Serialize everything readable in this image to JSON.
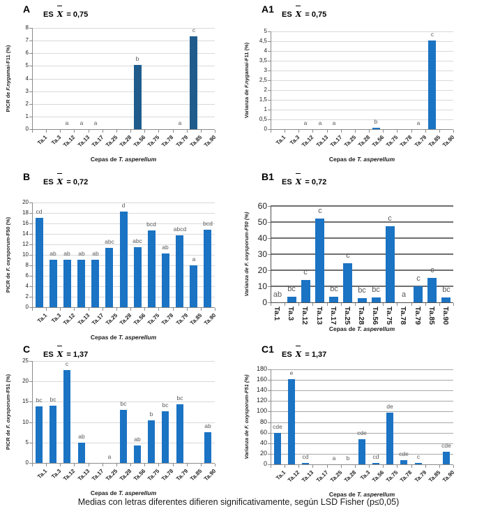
{
  "figure": {
    "caption": "Medias con letras diferentes difieren significativamente, según LSD Fisher (p≤0,05)",
    "background": "#FFFFFF"
  },
  "chart_data": [
    {
      "id": "A",
      "type": "bar",
      "panel_label": "A",
      "es": {
        "prefix": "ES",
        "symbol": "X",
        "value": "= 0,75"
      },
      "ylabel": {
        "prefix": "PICR de ",
        "italic": "F.nygamai",
        "suffix": "-F11 (%)"
      },
      "xlabel": {
        "prefix": "Cepas de ",
        "italic": "T. asperellum"
      },
      "categories": [
        "Ta.1",
        "Ta.3",
        "Ta.12",
        "Ta.13",
        "Ta.17",
        "Ta.25",
        "Ta.28",
        "Ta.56",
        "Ta.75",
        "Ta.78",
        "Ta.79",
        "Ta.85",
        "Ta.90"
      ],
      "values": [
        0,
        0,
        0,
        0,
        0,
        0,
        0,
        5.1,
        0,
        0,
        0,
        7.35,
        0
      ],
      "letters": [
        "",
        "",
        "a",
        "a",
        "a",
        "",
        "",
        "b",
        "",
        "",
        "a",
        "c",
        ""
      ],
      "ylim": [
        0,
        8
      ],
      "ytick_labels": [
        "0",
        "1",
        "2",
        "3",
        "4",
        "5",
        "6",
        "7",
        "8"
      ],
      "bar_color": "#1F5C8C",
      "grid_color": "#D9D9D9",
      "grid_weight": 1
    },
    {
      "id": "A1",
      "type": "bar",
      "panel_label": "A1",
      "es": {
        "prefix": "ES",
        "symbol": "X",
        "value": "= 0,75"
      },
      "ylabel": {
        "prefix": "Varianza de ",
        "italic": "F.nygamai",
        "suffix": "-F11 (%)"
      },
      "xlabel": {
        "prefix": "Cepas de ",
        "italic": "T. asperellum"
      },
      "categories": [
        "Ta.1",
        "Ta.3",
        "Ta.12",
        "Ta.13",
        "Ta.17",
        "Ta.25",
        "Ta.28",
        "Ta.56",
        "Ta.75",
        "Ta.78",
        "Ta.79",
        "Ta.85",
        "Ta.90"
      ],
      "values": [
        0,
        0,
        0,
        0,
        0,
        0,
        0,
        0.07,
        0,
        0,
        0,
        4.55,
        0
      ],
      "letters": [
        "",
        "",
        "a",
        "a",
        "a",
        "",
        "",
        "b",
        "",
        "",
        "a",
        "c",
        ""
      ],
      "ylim": [
        0,
        5
      ],
      "ytick_labels": [
        "0",
        "0,5",
        "1",
        "1,5",
        "2",
        "2,5",
        "3",
        "3,5",
        "4",
        "4,5",
        "5"
      ],
      "bar_color": "#1B73C4",
      "grid_color": "#D9D9D9",
      "grid_weight": 1
    },
    {
      "id": "B",
      "type": "bar",
      "panel_label": "B",
      "es": {
        "prefix": "ES",
        "symbol": "X",
        "value": "= 0,72"
      },
      "ylabel": {
        "prefix": "PICR de ",
        "italic": "F. oxysporum",
        "suffix": "-F50 (%)"
      },
      "xlabel": {
        "prefix": "Cepas de ",
        "italic": "T. asperellum"
      },
      "categories": [
        "Ta.1",
        "Ta.3",
        "Ta.12",
        "Ta.13",
        "Ta.17",
        "Ta.25",
        "Ta.28",
        "Ta.56",
        "Ta.75",
        "Ta.78",
        "Ta.79",
        "Ta.85",
        "Ta.90"
      ],
      "values": [
        17.1,
        9.1,
        9.0,
        9.1,
        9.1,
        11.3,
        18.2,
        11.4,
        14.7,
        10.3,
        13.7,
        8.0,
        14.8
      ],
      "letters": [
        "cd",
        "ab",
        "ab",
        "ab",
        "ab",
        "abc",
        "d",
        "abc",
        "bcd",
        "ab",
        "abcd",
        "a",
        "bcd"
      ],
      "ylim": [
        0,
        20
      ],
      "ytick_labels": [
        "0",
        "2",
        "4",
        "6",
        "8",
        "10",
        "12",
        "14",
        "16",
        "18",
        "20"
      ],
      "bar_color": "#1B73C4",
      "grid_color": "#D9D9D9",
      "grid_weight": 1
    },
    {
      "id": "B1",
      "type": "bar",
      "panel_label": "B1",
      "es": {
        "prefix": "ES",
        "symbol": "X",
        "value": "= 0,72"
      },
      "ylabel": {
        "prefix": "Varianza de ",
        "italic": "F. oxysporum",
        "suffix": "-F50 (%)"
      },
      "xlabel": {
        "prefix": "Cepas de ",
        "italic": "T. asperellum"
      },
      "categories": [
        "Ta.1",
        "Ta.3",
        "Ta.12",
        "Ta.13",
        "Ta.17",
        "Ta.25",
        "Ta.28",
        "Ta.56",
        "Ta.75",
        "Ta.78",
        "Ta.79",
        "Ta.85",
        "Ta.90"
      ],
      "values": [
        0,
        3.5,
        14,
        52,
        3.5,
        24.5,
        2.5,
        3,
        47.5,
        0,
        10,
        15,
        3
      ],
      "letters": [
        "ab",
        "bc",
        "c",
        "c",
        "bc",
        "c",
        "bc",
        "bc",
        "c",
        "a",
        "c",
        "c",
        "bc"
      ],
      "ylim": [
        0,
        60
      ],
      "ytick_labels": [
        "0",
        "10",
        "20",
        "30",
        "40",
        "50",
        "60"
      ],
      "bar_color": "#1B73C4",
      "grid_color": "#6E6E6E",
      "grid_weight": 2
    },
    {
      "id": "C",
      "type": "bar",
      "panel_label": "C",
      "es": {
        "prefix": "ES",
        "symbol": "X",
        "value": "= 1,37"
      },
      "ylabel": {
        "prefix": "PICR de ",
        "italic": "F. oxysporum",
        "suffix": "-F51 (%)"
      },
      "xlabel": {
        "prefix": "Cepas de ",
        "italic": "T. asperellum"
      },
      "categories": [
        "Ta.1",
        "Ta.3",
        "Ta.12",
        "Ta.13",
        "Ta.17",
        "Ta.25",
        "Ta.28",
        "Ta.56",
        "Ta.75",
        "Ta.78",
        "Ta.79",
        "Ta.85",
        "Ta.90"
      ],
      "values": [
        13.9,
        14.1,
        22.8,
        5.0,
        0,
        0,
        13.0,
        4.3,
        10.5,
        12.7,
        14.3,
        0,
        7.5
      ],
      "letters": [
        "bc",
        "bc",
        "c",
        "ab",
        "",
        "a",
        "bc",
        "ab",
        "b",
        "bc",
        "bc",
        "",
        "ab"
      ],
      "ylim": [
        0,
        25
      ],
      "ytick_labels": [
        "0",
        "5",
        "10",
        "15",
        "20",
        "25"
      ],
      "bar_color": "#1B73C4",
      "grid_color": "#D9D9D9",
      "grid_weight": 1
    },
    {
      "id": "C1",
      "type": "bar",
      "panel_label": "C1",
      "es": {
        "prefix": "ES",
        "symbol": "X",
        "value": "= 1,37"
      },
      "ylabel": {
        "prefix": "Varianza de ",
        "italic": "F. oxysporum",
        "suffix": "-F51 (%)"
      },
      "xlabel": {
        "prefix": "Cepas de ",
        "italic": "T. asperellum"
      },
      "categories": [
        "Ta.1",
        "Ta.12",
        "Ta.13",
        "Ta.17",
        "Ta.25",
        "Ta.28",
        "Ta.3",
        "Ta.56",
        "Ta.75",
        "Ta.78",
        "Ta.79",
        "Ta.85",
        "Ta.90"
      ],
      "values": [
        59,
        162,
        3,
        0,
        0,
        0,
        48,
        3,
        98,
        8,
        2,
        0,
        24
      ],
      "letters": [
        "cde",
        "e",
        "cd",
        "",
        "a",
        "b",
        "cde",
        "cd",
        "de",
        "cde",
        "c",
        "",
        "cde"
      ],
      "ylim": [
        0,
        180
      ],
      "ytick_labels": [
        "0",
        "20",
        "40",
        "60",
        "80",
        "100",
        "120",
        "140",
        "160",
        "180"
      ],
      "bar_color": "#1B73C4",
      "grid_color": "#A8A8A8",
      "grid_weight": 1
    }
  ]
}
